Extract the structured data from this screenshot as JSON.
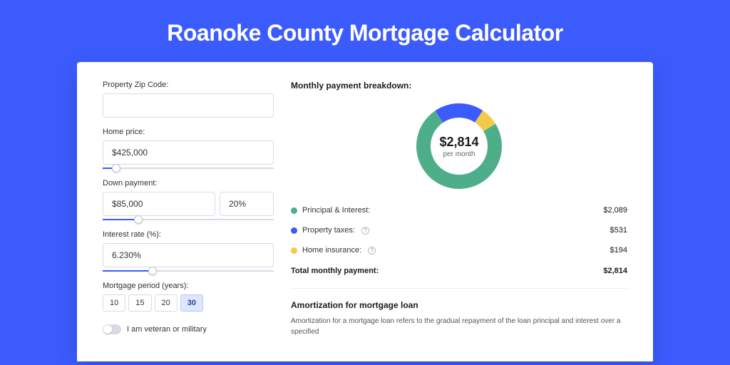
{
  "page": {
    "title": "Roanoke County Mortgage Calculator",
    "background_color": "#3b5bfd",
    "card_background": "#ffffff"
  },
  "form": {
    "zip": {
      "label": "Property Zip Code:",
      "value": ""
    },
    "home_price": {
      "label": "Home price:",
      "value": "$425,000",
      "slider_pct": 8
    },
    "down_payment": {
      "label": "Down payment:",
      "value": "$85,000",
      "pct_value": "20%",
      "slider_pct": 21
    },
    "interest_rate": {
      "label": "Interest rate (%):",
      "value": "6.230%",
      "slider_pct": 29
    },
    "mortgage_period": {
      "label": "Mortgage period (years):",
      "options": [
        "10",
        "15",
        "20",
        "30"
      ],
      "selected": "30"
    },
    "veteran": {
      "label": "I am veteran or military",
      "checked": false
    }
  },
  "breakdown": {
    "title": "Monthly payment breakdown:",
    "donut": {
      "center_amount": "$2,814",
      "center_sub": "per month",
      "slices": [
        {
          "label": "Principal & Interest:",
          "value": "$2,089",
          "color": "#4fae8a",
          "fraction": 0.742
        },
        {
          "label": "Property taxes:",
          "value": "$531",
          "color": "#3b5bfd",
          "fraction": 0.189,
          "info": true
        },
        {
          "label": "Home insurance:",
          "value": "$194",
          "color": "#f3c94b",
          "fraction": 0.069,
          "info": true
        }
      ]
    },
    "total": {
      "label": "Total monthly payment:",
      "value": "$2,814"
    }
  },
  "amortization": {
    "title": "Amortization for mortgage loan",
    "body": "Amortization for a mortgage loan refers to the gradual repayment of the loan principal and interest over a specified"
  }
}
